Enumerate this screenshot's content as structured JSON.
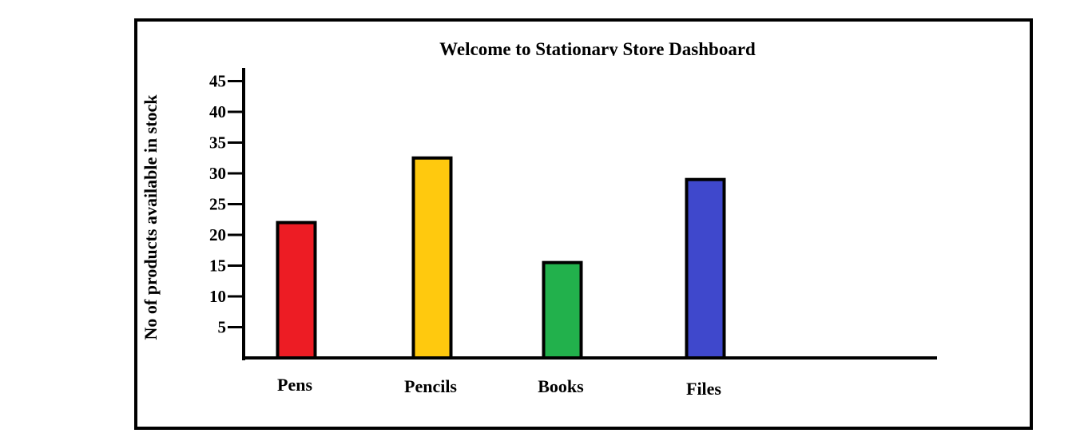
{
  "chart_data": {
    "type": "bar",
    "title": "Welcome to Stationary Store Dashboard",
    "xlabel": "",
    "ylabel": "No of products available in stock",
    "categories": [
      "Pens",
      "Pencils",
      "Books",
      "Files"
    ],
    "values": [
      22,
      32.5,
      15.5,
      29
    ],
    "colors": [
      "#ed1c24",
      "#ffc90e",
      "#22b14c",
      "#3f48cc"
    ],
    "bar_outline_color": "#000000",
    "yticks": [
      5,
      10,
      15,
      20,
      25,
      30,
      35,
      40,
      45
    ],
    "ylim": [
      0,
      46
    ],
    "grid": false,
    "legend": "none"
  }
}
